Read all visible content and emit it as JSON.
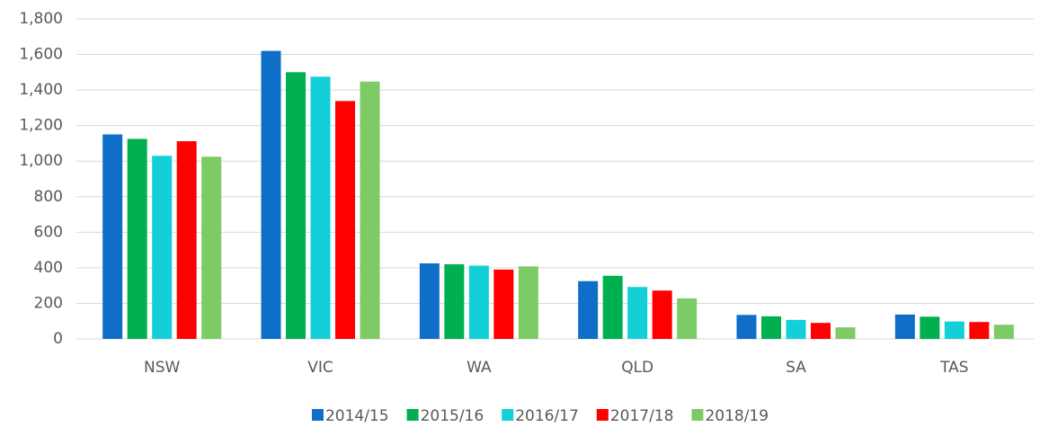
{
  "chart_data": {
    "type": "bar",
    "categories": [
      "NSW",
      "VIC",
      "WA",
      "QLD",
      "SA",
      "TAS"
    ],
    "series": [
      {
        "name": "2014/15",
        "color": "#0e6ec8",
        "values": [
          1150,
          1620,
          425,
          325,
          135,
          137
        ]
      },
      {
        "name": "2015/16",
        "color": "#00b050",
        "values": [
          1125,
          1500,
          420,
          355,
          127,
          125
        ]
      },
      {
        "name": "2016/17",
        "color": "#12cfd8",
        "values": [
          1030,
          1475,
          412,
          292,
          107,
          98
        ]
      },
      {
        "name": "2017/18",
        "color": "#ff0000",
        "values": [
          1112,
          1338,
          390,
          272,
          90,
          95
        ]
      },
      {
        "name": "2018/19",
        "color": "#7dcb65",
        "values": [
          1025,
          1447,
          408,
          228,
          65,
          80
        ]
      }
    ],
    "ylim": [
      0,
      1800
    ],
    "yticks": [
      0,
      200,
      400,
      600,
      800,
      {
        "value": 1000,
        "label": "1,000"
      },
      {
        "value": 1200,
        "label": "1,200"
      },
      {
        "value": 1400,
        "label": "1,400"
      },
      {
        "value": 1600,
        "label": "1,600"
      },
      {
        "value": 1800,
        "label": "1,800"
      }
    ],
    "grid": true,
    "legend": "bottom"
  }
}
